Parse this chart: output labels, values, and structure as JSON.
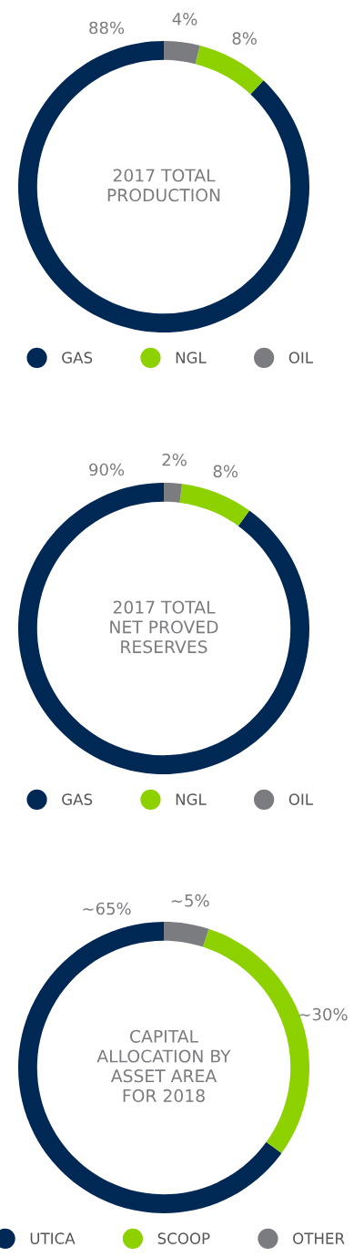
{
  "chart_data": [
    {
      "type": "donut",
      "title": "2017 TOTAL\nPRODUCTION",
      "categories": [
        "GAS",
        "NGL",
        "OIL"
      ],
      "values": [
        88,
        8,
        4
      ],
      "colors": [
        "#002855",
        "#8dd100",
        "#7a7c80"
      ],
      "value_labels": [
        "88%",
        "8%",
        "4%"
      ],
      "legend": "bottom"
    },
    {
      "type": "donut",
      "title": "2017 TOTAL\nNET PROVED\nRESERVES",
      "categories": [
        "GAS",
        "NGL",
        "OIL"
      ],
      "values": [
        90,
        8,
        2
      ],
      "colors": [
        "#002855",
        "#8dd100",
        "#7a7c80"
      ],
      "value_labels": [
        "90%",
        "8%",
        "2%"
      ],
      "legend": "bottom"
    },
    {
      "type": "donut",
      "title": "CAPITAL\nALLOCATION BY\nASSET AREA\nFOR 2018",
      "categories": [
        "UTICA",
        "SCOOP",
        "OTHER"
      ],
      "values": [
        65,
        30,
        5
      ],
      "colors": [
        "#002855",
        "#8dd100",
        "#7a7c80"
      ],
      "value_labels": [
        "~65%",
        "~30%",
        "~5%"
      ],
      "legend": "bottom"
    }
  ]
}
